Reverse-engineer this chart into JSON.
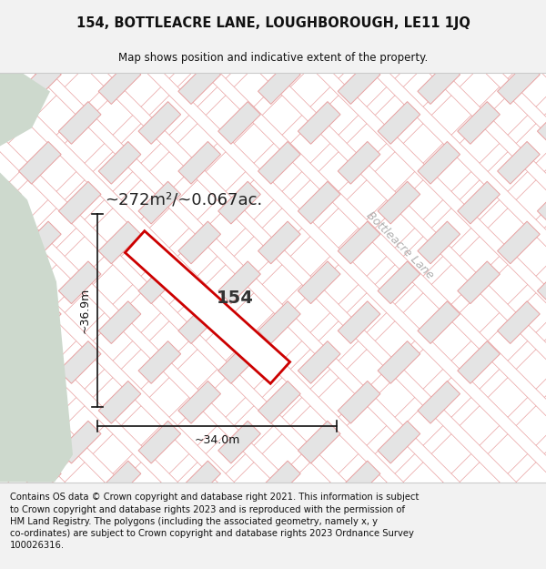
{
  "title": "154, BOTTLEACRE LANE, LOUGHBOROUGH, LE11 1JQ",
  "subtitle": "Map shows position and indicative extent of the property.",
  "footer": "Contains OS data © Crown copyright and database right 2021. This information is subject\nto Crown copyright and database rights 2023 and is reproduced with the permission of\nHM Land Registry. The polygons (including the associated geometry, namely x, y\nco-ordinates) are subject to Crown copyright and database rights 2023 Ordnance Survey\n100026316.",
  "area_label": "~272m²/~0.067ac.",
  "width_label": "~34.0m",
  "height_label": "~36.9m",
  "plot_number": "154",
  "road_label": "Bottleacre Lane",
  "bg_color": "#f2f2f2",
  "map_bg": "#ffffff",
  "green_color": "#cdd9cd",
  "building_fill": "#e4e4e4",
  "building_stroke": "#e8a0a0",
  "road_fill": "#ffffff",
  "road_stroke": "#e8a0a0",
  "plot_stroke": "#cc0000",
  "plot_fill": "#ffffff",
  "road_label_color": "#b0b0b0",
  "title_fontsize": 10.5,
  "subtitle_fontsize": 8.5,
  "footer_fontsize": 7.2,
  "area_label_fontsize": 13,
  "plot_number_fontsize": 14,
  "road_label_fontsize": 9
}
